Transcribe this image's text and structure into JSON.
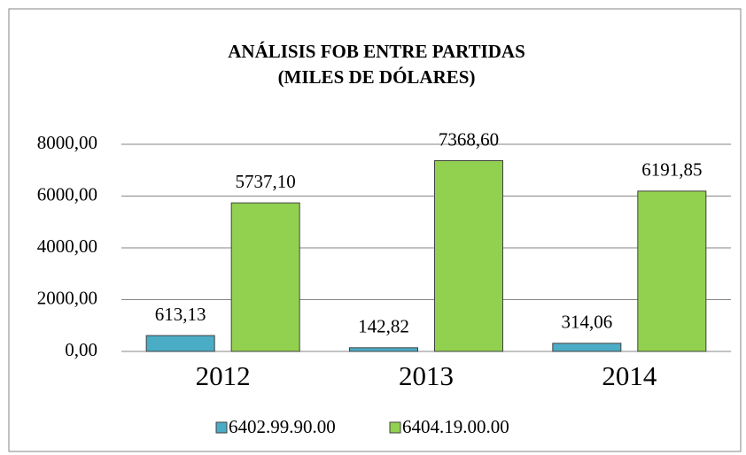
{
  "chart_data": {
    "type": "bar",
    "title": [
      "ANÁLISIS FOB ENTRE PARTIDAS",
      "(MILES DE DÓLARES)"
    ],
    "categories": [
      "2012",
      "2013",
      "2014"
    ],
    "series": [
      {
        "name": "6402.99.90.00",
        "color": "#4bacc6",
        "values": [
          613.13,
          142.82,
          314.06
        ],
        "value_labels": [
          "613,13",
          "142,82",
          "314,06"
        ]
      },
      {
        "name": "6404.19.00.00",
        "color": "#92d050",
        "values": [
          5737.1,
          7368.6,
          6191.85
        ],
        "value_labels": [
          "5737,10",
          "7368,60",
          "6191,85"
        ]
      }
    ],
    "ylim": [
      0,
      8000
    ],
    "yticks": [
      {
        "value": 0,
        "label": "0,00"
      },
      {
        "value": 2000,
        "label": "2000,00"
      },
      {
        "value": 4000,
        "label": "4000,00"
      },
      {
        "value": 6000,
        "label": "6000,00"
      },
      {
        "value": 8000,
        "label": "8000,00"
      }
    ],
    "grid": true,
    "legend": "bottom"
  }
}
